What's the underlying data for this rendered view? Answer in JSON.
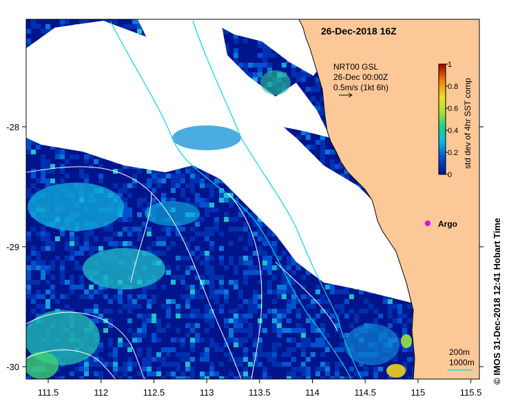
{
  "map": {
    "title": "26-Dec-2018 16Z",
    "current_label": {
      "line1": "NRT00 GSL",
      "line2": "26-Dec 00:00Z",
      "line3": "0.5m/s (1kt 6h)"
    },
    "colorbar": {
      "title": "std dev of 4hr SST comp",
      "ticks": [
        "1",
        "0.8",
        "0.6",
        "0.4",
        "0.2",
        "0"
      ],
      "min": 0,
      "max": 1
    },
    "x_ticks": [
      "111.5",
      "112",
      "112.5",
      "113",
      "113.5",
      "114",
      "114.5",
      "115",
      "115.5"
    ],
    "y_ticks": [
      "-28",
      "-29",
      "-30"
    ],
    "argo": {
      "label": "Argo",
      "color": "#e000e0"
    },
    "contours": {
      "label1": "200m",
      "label2": "1000m",
      "color": "#00d8e8"
    },
    "credit": "© IMOS 31-Dec-2018 12:41 Hobart Time",
    "colors": {
      "land": "#fdc898",
      "ocean_base": "#00148c",
      "cloud": "#ffffff",
      "bathy_1000": "#ffffff",
      "bathy_200": "#00d8e8"
    }
  }
}
